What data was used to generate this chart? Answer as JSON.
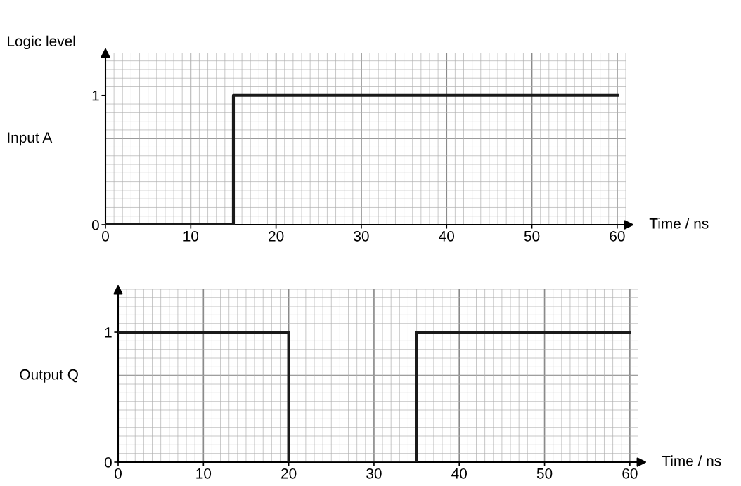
{
  "chart_data": [
    {
      "type": "step",
      "ylabel": "Input A",
      "xlabel": "Time / ns",
      "annotations": [
        "Logic level"
      ],
      "x": [
        0,
        15,
        60
      ],
      "values": [
        0,
        1,
        1
      ],
      "color": "#1a1a1a",
      "xlim": [
        0,
        61
      ],
      "ylim": [
        0,
        1.33
      ],
      "xticks": [
        0,
        10,
        20,
        30,
        40,
        50,
        60
      ],
      "yticks": [
        0,
        1
      ],
      "grid": true
    },
    {
      "type": "step",
      "ylabel": "Output Q",
      "xlabel": "Time / ns",
      "x": [
        0,
        20,
        35,
        60
      ],
      "values": [
        1,
        0,
        1,
        1
      ],
      "color": "#1a1a1a",
      "xlim": [
        0,
        61
      ],
      "ylim": [
        0,
        1.33
      ],
      "xticks": [
        0,
        10,
        20,
        30,
        40,
        50,
        60
      ],
      "yticks": [
        0,
        1
      ],
      "grid": true
    }
  ]
}
